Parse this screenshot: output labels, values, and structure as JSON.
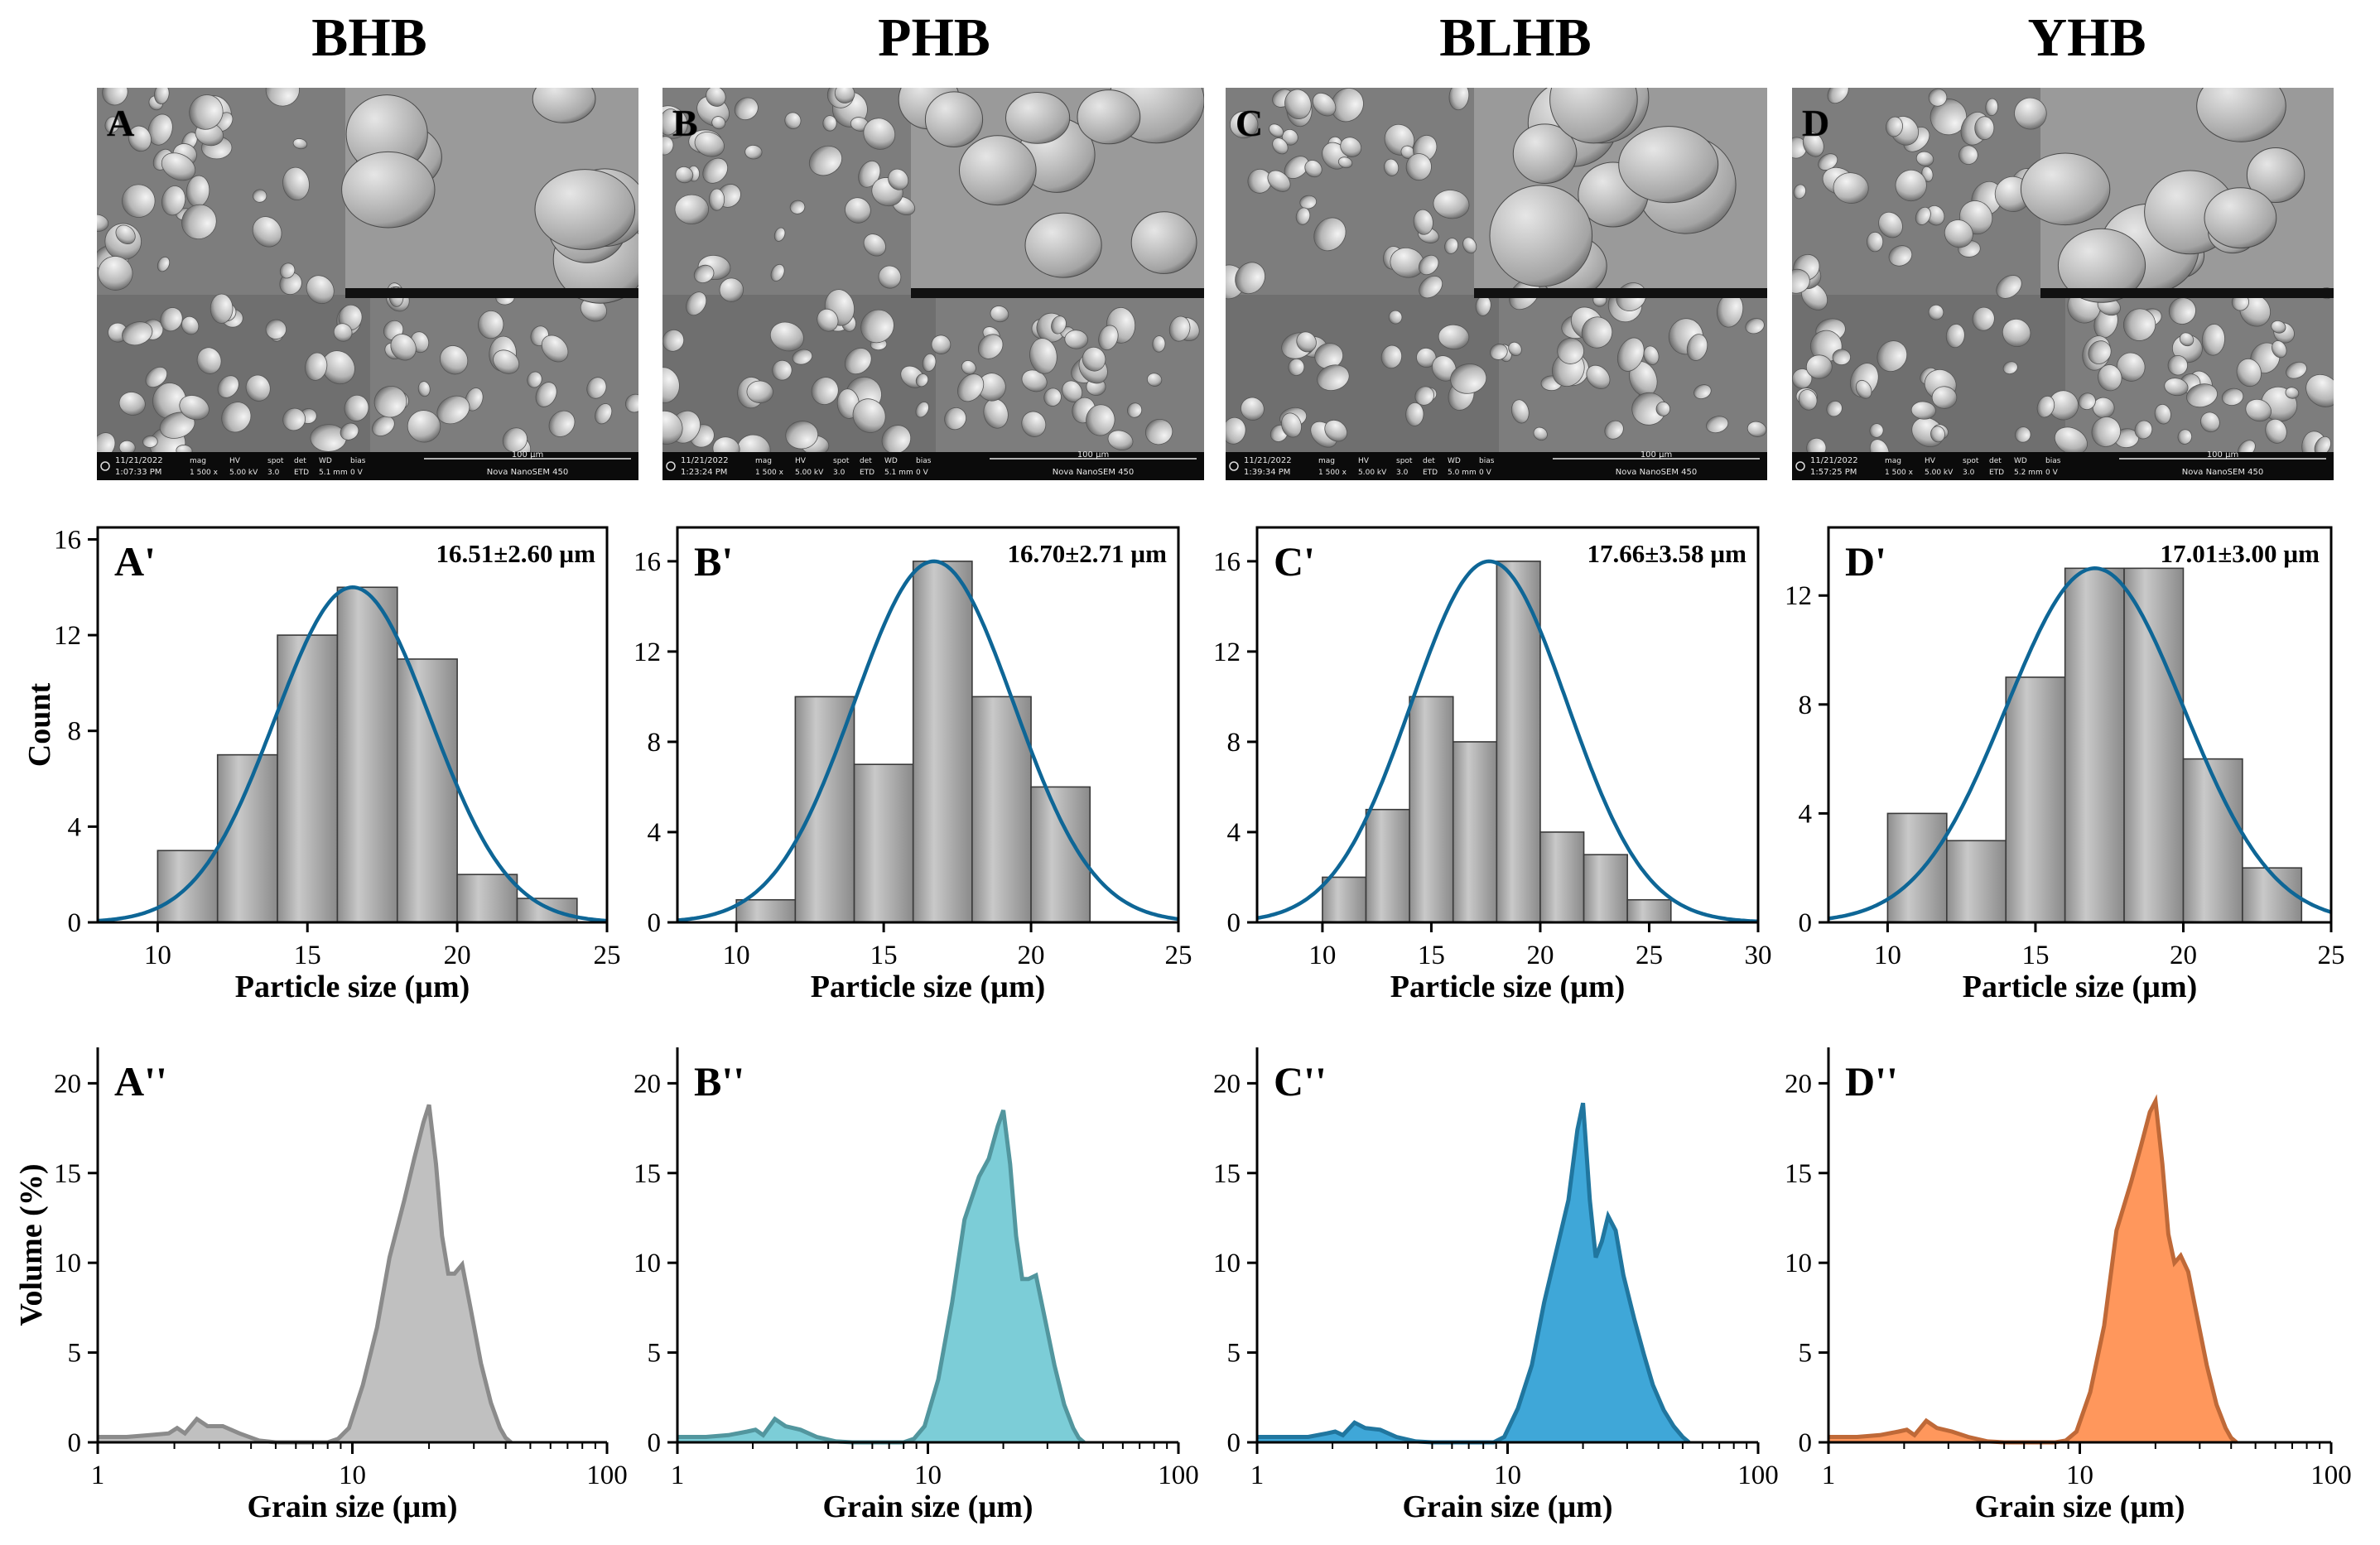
{
  "columns": [
    {
      "title": "BHB",
      "sem_label": "A",
      "sem_date": "11/21/2022",
      "sem_time": "1:07:33 PM",
      "sem_mag": "1 500 x",
      "sem_hv": "5.00 kV",
      "sem_spot": "3.0",
      "sem_det": "ETD",
      "sem_wd": "5.1 mm",
      "sem_bias": "0 V",
      "sem_scale": "100 µm",
      "sem_instrument": "Nova NanoSEM 450"
    },
    {
      "title": "PHB",
      "sem_label": "B",
      "sem_date": "11/21/2022",
      "sem_time": "1:23:24 PM",
      "sem_mag": "1 500 x",
      "sem_hv": "5.00 kV",
      "sem_spot": "3.0",
      "sem_det": "ETD",
      "sem_wd": "5.1 mm",
      "sem_bias": "0 V",
      "sem_scale": "100 µm",
      "sem_instrument": "Nova NanoSEM 450"
    },
    {
      "title": "BLHB",
      "sem_label": "C",
      "sem_date": "11/21/2022",
      "sem_time": "1:39:34 PM",
      "sem_mag": "1 500 x",
      "sem_hv": "5.00 kV",
      "sem_spot": "3.0",
      "sem_det": "ETD",
      "sem_wd": "5.0 mm",
      "sem_bias": "0 V",
      "sem_scale": "100 µm",
      "sem_instrument": "Nova NanoSEM 450"
    },
    {
      "title": "YHB",
      "sem_label": "D",
      "sem_date": "11/21/2022",
      "sem_time": "1:57:25 PM",
      "sem_mag": "1 500 x",
      "sem_hv": "5.00 kV",
      "sem_spot": "3.0",
      "sem_det": "ETD",
      "sem_wd": "5.2 mm",
      "sem_bias": "0 V",
      "sem_scale": "100 µm",
      "sem_instrument": "Nova NanoSEM 450"
    }
  ],
  "sem_meta_labels": {
    "mag": "mag",
    "hv": "HV",
    "spot": "spot",
    "det": "det",
    "wd": "WD",
    "bias": "bias"
  },
  "colors": {
    "hist_bar": "#a9a9a9",
    "fit_line": "#0e6696",
    "BHB": "#b9b9b9",
    "PHB": "#6ec8d3",
    "BLHB": "#2a9dd4",
    "YHB": "#ff8c4a"
  },
  "chart_data": [
    {
      "panel": "A'",
      "type": "bar",
      "title": "",
      "xlabel": "Particle size (µm)",
      "ylabel": "Count",
      "annotation": "16.51±2.60 µm",
      "xlim": [
        8,
        25
      ],
      "ylim": [
        0,
        16.5
      ],
      "xticks": [
        10,
        15,
        20,
        25
      ],
      "yticks": [
        0,
        4,
        8,
        12,
        16
      ],
      "bin_edges": [
        10,
        12,
        14,
        16,
        18,
        20,
        22,
        24
      ],
      "values": [
        3,
        7,
        12,
        14,
        11,
        2,
        1
      ],
      "fit": {
        "mean": 16.51,
        "sd": 2.6,
        "peak": 14
      }
    },
    {
      "panel": "B'",
      "type": "bar",
      "title": "",
      "xlabel": "Particle size (µm)",
      "ylabel": "",
      "annotation": "16.70±2.71 µm",
      "xlim": [
        8,
        25
      ],
      "ylim": [
        0,
        17.5
      ],
      "xticks": [
        10,
        15,
        20,
        25
      ],
      "yticks": [
        0,
        4,
        8,
        12,
        16
      ],
      "bin_edges": [
        10,
        12,
        14,
        16,
        18,
        20,
        22
      ],
      "values": [
        1,
        10,
        7,
        16,
        10,
        6
      ],
      "fit": {
        "mean": 16.7,
        "sd": 2.71,
        "peak": 16
      }
    },
    {
      "panel": "C'",
      "type": "bar",
      "title": "",
      "xlabel": "Particle size (µm)",
      "ylabel": "",
      "annotation": "17.66±3.58 µm",
      "xlim": [
        7,
        30
      ],
      "ylim": [
        0,
        17.5
      ],
      "xticks": [
        10,
        15,
        20,
        25,
        30
      ],
      "yticks": [
        0,
        4,
        8,
        12,
        16
      ],
      "bin_edges": [
        10,
        12,
        14,
        16,
        18,
        20,
        22,
        24,
        26
      ],
      "values": [
        2,
        5,
        10,
        8,
        16,
        4,
        3,
        1
      ],
      "fit": {
        "mean": 17.66,
        "sd": 3.58,
        "peak": 16
      }
    },
    {
      "panel": "D'",
      "type": "bar",
      "title": "",
      "xlabel": "Particle size (µm)",
      "ylabel": "",
      "annotation": "17.01±3.00 µm",
      "xlim": [
        8,
        25
      ],
      "ylim": [
        0,
        14.5
      ],
      "xticks": [
        10,
        15,
        20,
        25
      ],
      "yticks": [
        0,
        4,
        8,
        12
      ],
      "bin_edges": [
        10,
        12,
        14,
        16,
        18,
        20,
        22,
        24
      ],
      "values": [
        4,
        3,
        9,
        13,
        13,
        6,
        2
      ],
      "fit": {
        "mean": 17.01,
        "sd": 3.0,
        "peak": 13
      }
    },
    {
      "panel": "A''",
      "type": "area",
      "title": "",
      "xlabel": "Grain size (µm)",
      "ylabel": "Volume (%)",
      "xscale": "log",
      "xlim": [
        1,
        100
      ],
      "ylim": [
        0,
        22
      ],
      "xticks": [
        1,
        10,
        100
      ],
      "yticks": [
        0,
        5,
        10,
        15,
        20
      ],
      "color_key": "BHB",
      "x": [
        1,
        1.3,
        1.6,
        1.9,
        2.05,
        2.2,
        2.45,
        2.7,
        3.1,
        3.6,
        4.3,
        5,
        6,
        7,
        8,
        8.8,
        9.7,
        11,
        12.5,
        14,
        16,
        17.5,
        19,
        20,
        21.3,
        22.5,
        23.8,
        25.2,
        27,
        29,
        32,
        35,
        38,
        40,
        42
      ],
      "y": [
        0.3,
        0.3,
        0.4,
        0.5,
        0.8,
        0.5,
        1.3,
        0.9,
        0.9,
        0.5,
        0.1,
        0,
        0,
        0,
        0,
        0.2,
        0.8,
        3.2,
        6.4,
        10.3,
        13.5,
        15.8,
        17.8,
        18.8,
        15.5,
        11.5,
        9.4,
        9.4,
        9.9,
        7.6,
        4.4,
        2.2,
        0.8,
        0.25,
        0
      ]
    },
    {
      "panel": "B''",
      "type": "area",
      "title": "",
      "xlabel": "Grain size (µm)",
      "ylabel": "",
      "xscale": "log",
      "xlim": [
        1,
        100
      ],
      "ylim": [
        0,
        22
      ],
      "xticks": [
        1,
        10,
        100
      ],
      "yticks": [
        0,
        5,
        10,
        15,
        20
      ],
      "color_key": "PHB",
      "x": [
        1,
        1.3,
        1.6,
        1.9,
        2.05,
        2.2,
        2.45,
        2.7,
        3.1,
        3.6,
        4.3,
        5,
        6,
        7,
        8,
        8.8,
        9.7,
        11,
        12.5,
        14,
        16,
        17.5,
        19,
        20,
        21.3,
        22.5,
        23.8,
        25.2,
        27,
        29,
        32,
        35,
        38,
        40,
        42
      ],
      "y": [
        0.3,
        0.3,
        0.4,
        0.6,
        0.7,
        0.4,
        1.3,
        0.9,
        0.7,
        0.3,
        0.05,
        0,
        0,
        0,
        0,
        0.2,
        0.9,
        3.5,
        7.8,
        12.4,
        14.8,
        15.8,
        17.6,
        18.5,
        15.5,
        11.5,
        9.1,
        9.1,
        9.3,
        7.2,
        4.3,
        2.1,
        0.8,
        0.25,
        0
      ]
    },
    {
      "panel": "C''",
      "type": "area",
      "title": "",
      "xlabel": "Grain size (µm)",
      "ylabel": "",
      "xscale": "log",
      "xlim": [
        1,
        100
      ],
      "ylim": [
        0,
        22
      ],
      "xticks": [
        1,
        10,
        100
      ],
      "yticks": [
        0,
        5,
        10,
        15,
        20
      ],
      "color_key": "BLHB",
      "x": [
        1,
        1.3,
        1.6,
        1.9,
        2.05,
        2.2,
        2.45,
        2.7,
        3.1,
        3.6,
        4.3,
        5,
        6,
        7,
        8,
        8.8,
        9.7,
        11,
        12.5,
        14,
        16,
        17.5,
        19,
        20,
        21.3,
        22.5,
        23.8,
        25.2,
        27,
        29,
        32,
        35,
        38,
        42,
        46,
        50,
        53
      ],
      "y": [
        0.3,
        0.3,
        0.3,
        0.5,
        0.6,
        0.4,
        1.1,
        0.8,
        0.7,
        0.3,
        0.05,
        0,
        0,
        0,
        0,
        0,
        0.3,
        1.9,
        4.3,
        7.8,
        11.2,
        13.5,
        17.4,
        18.9,
        13.5,
        10.3,
        11.2,
        12.6,
        11.8,
        9.3,
        6.9,
        4.9,
        3.2,
        1.8,
        0.9,
        0.3,
        0
      ]
    },
    {
      "panel": "D''",
      "type": "area",
      "title": "",
      "xlabel": "Grain size (µm)",
      "ylabel": "",
      "xscale": "log",
      "xlim": [
        1,
        100
      ],
      "ylim": [
        0,
        22
      ],
      "xticks": [
        1,
        10,
        100
      ],
      "yticks": [
        0,
        5,
        10,
        15,
        20
      ],
      "color_key": "YHB",
      "x": [
        1,
        1.3,
        1.6,
        1.9,
        2.05,
        2.2,
        2.45,
        2.7,
        3.1,
        3.6,
        4.3,
        5,
        6,
        7,
        8,
        8.8,
        9.7,
        11,
        12.5,
        14,
        16,
        17.5,
        19,
        20,
        21.3,
        22.5,
        23.8,
        25.2,
        27,
        29,
        32,
        35,
        38,
        40,
        42
      ],
      "y": [
        0.3,
        0.3,
        0.4,
        0.6,
        0.7,
        0.4,
        1.2,
        0.8,
        0.6,
        0.3,
        0.05,
        0,
        0,
        0,
        0,
        0.1,
        0.6,
        2.8,
        6.5,
        11.8,
        14.5,
        16.5,
        18.4,
        19,
        15.5,
        11.6,
        10,
        10.4,
        9.5,
        7.3,
        4.3,
        2.1,
        0.8,
        0.25,
        0
      ]
    }
  ]
}
